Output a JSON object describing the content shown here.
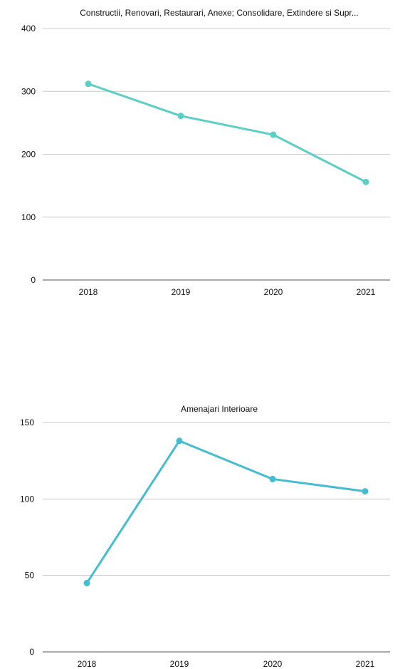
{
  "chart_data": [
    {
      "type": "line",
      "title": "Constructii, Renovari, Restaurari, Anexe; Consolidare, Extindere si Supr...",
      "categories": [
        "2018",
        "2019",
        "2020",
        "2021"
      ],
      "series": [
        {
          "values": [
            312,
            261,
            231,
            156
          ]
        }
      ],
      "ylim": [
        0,
        400
      ],
      "yticks": [
        0,
        100,
        200,
        300,
        400
      ],
      "color": "#5ccfc4",
      "grid": true,
      "legend": "none"
    },
    {
      "type": "line",
      "title": "Amenajari Interioare",
      "categories": [
        "2018",
        "2019",
        "2020",
        "2021"
      ],
      "series": [
        {
          "values": [
            45,
            138,
            113,
            105
          ]
        }
      ],
      "ylim": [
        0,
        150
      ],
      "yticks": [
        0,
        50,
        100,
        150
      ],
      "color": "#45bcd0",
      "grid": true,
      "legend": "none"
    }
  ]
}
